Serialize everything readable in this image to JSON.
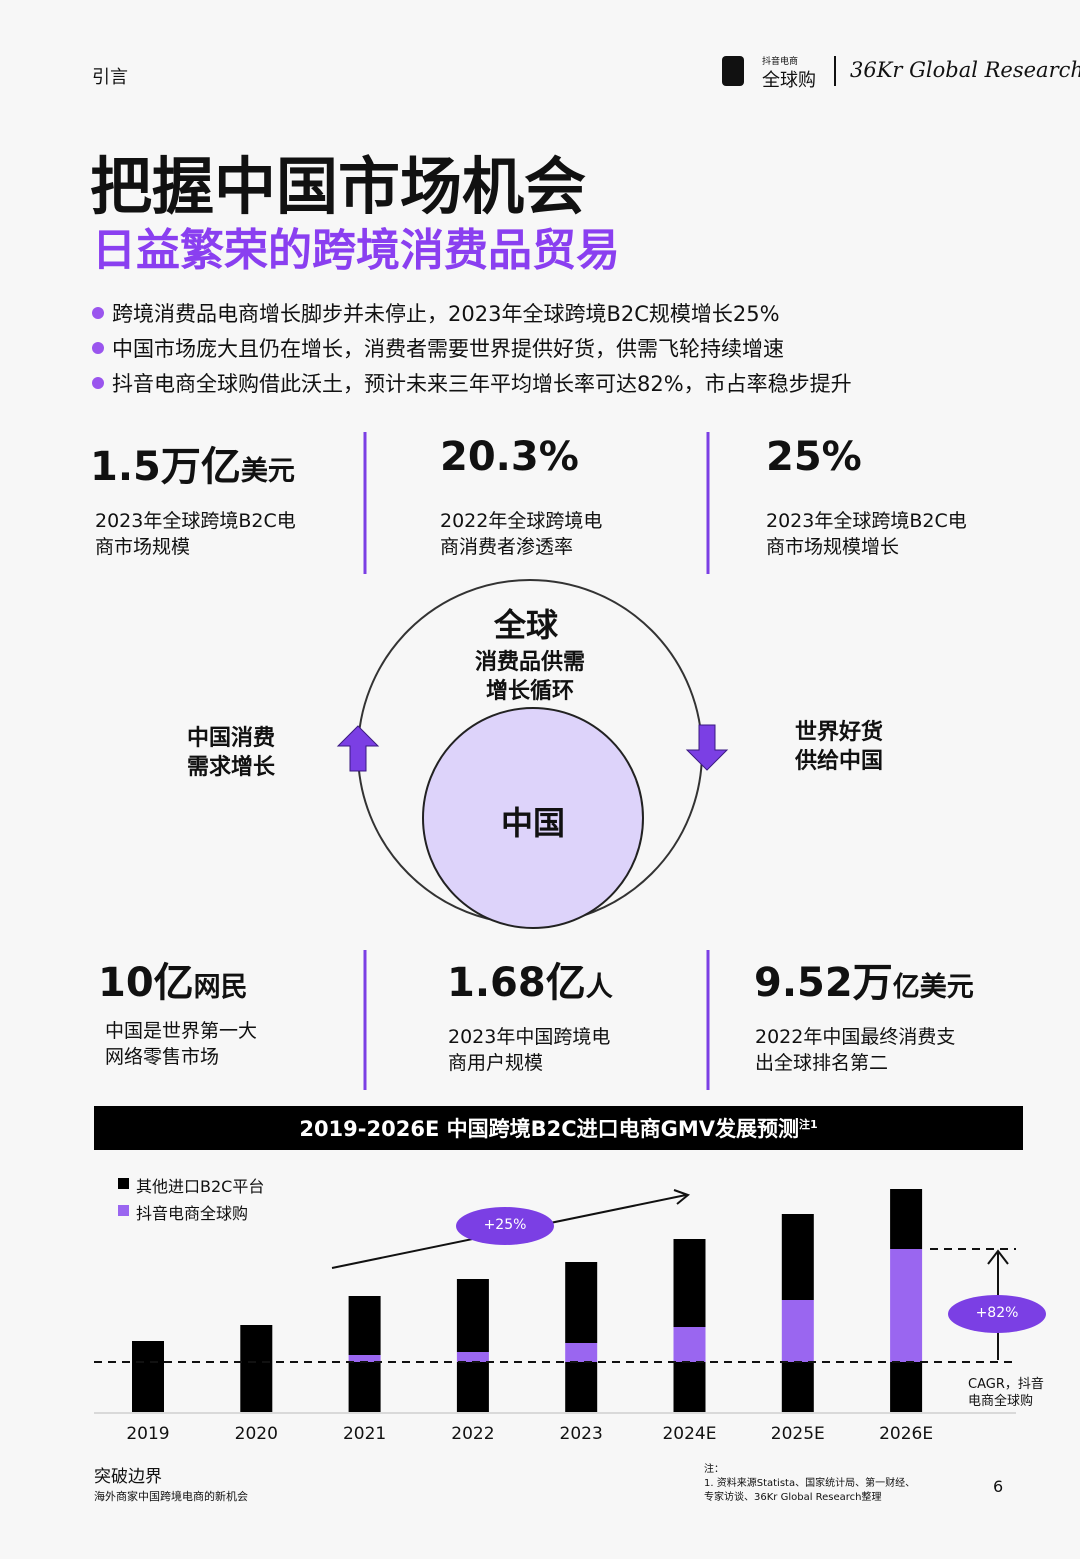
{
  "header": {
    "section": "引言",
    "logo1_small": "抖音电商",
    "logo1": "全球购",
    "logo2": "36Kr Global Research"
  },
  "title": "把握中国市场机会",
  "subtitle": "日益繁荣的跨境消费品贸易",
  "bullets": [
    "跨境消费品电商增长脚步并未停止，2023年全球跨境B2C规模增长25%",
    "中国市场庞大且仍在增长，消费者需要世界提供好货，供需飞轮持续增速",
    "抖音电商全球购借此沃土，预计未来三年平均增长率可达82%，市占率稳步提升"
  ],
  "stats": [
    {
      "value": "1.5万亿",
      "unit": "美元",
      "desc": [
        "2023年全球跨境B2C电",
        "商市场规模"
      ]
    },
    {
      "value": "20.3%",
      "unit": "",
      "desc": [
        "2022年全球跨境电",
        "商消费者渗透率"
      ]
    },
    {
      "value": "25%",
      "unit": "",
      "desc": [
        "2023年全球跨境B2C电",
        "商市场规模增长"
      ]
    },
    {
      "value": "10亿",
      "unit": "网民",
      "desc": [
        "中国是世界第一大",
        "网络零售市场"
      ]
    },
    {
      "value": "1.68亿",
      "unit": "人",
      "desc": [
        "2023年中国跨境电",
        "商用户规模"
      ]
    },
    {
      "value": "9.52万",
      "unit": "亿美元",
      "desc": [
        "2022年中国最终消费支",
        "出全球排名第二"
      ]
    }
  ],
  "cycle": {
    "top": "全球",
    "top_sub": [
      "消费品供需",
      "增长循环"
    ],
    "center": "中国",
    "left": [
      "中国消费",
      "需求增长"
    ],
    "right": [
      "世界好货",
      "供给中国"
    ]
  },
  "chart_data": {
    "type": "bar",
    "title": "2019-2026E 中国跨境B2C进口电商GMV发展预测",
    "title_note": "注1",
    "categories": [
      "2019",
      "2020",
      "2021",
      "2022",
      "2023",
      "2024E",
      "2025E",
      "2026E"
    ],
    "series": [
      {
        "name": "其他进口B2C平台",
        "color": "#000000",
        "values": [
          71,
          87,
          109,
          123,
          131,
          138,
          136,
          110
        ]
      },
      {
        "name": "抖音电商全球购",
        "color": "#9a66f0",
        "values": [
          0,
          0,
          7,
          10,
          19,
          35,
          62,
          113
        ]
      }
    ],
    "ylim": [
      0,
      230
    ],
    "annotations": [
      "+25%",
      "+82%",
      "CAGR，抖音",
      "电商全球购"
    ]
  },
  "footer": {
    "title": "突破边界",
    "subtitle": "海外商家中国跨境电商的新机会",
    "note_label": "注：",
    "notes": [
      "1. 资料来源Statista、国家统计局、第一财经、",
      "专家访谈、36Kr Global Research整理"
    ],
    "page": "6"
  }
}
